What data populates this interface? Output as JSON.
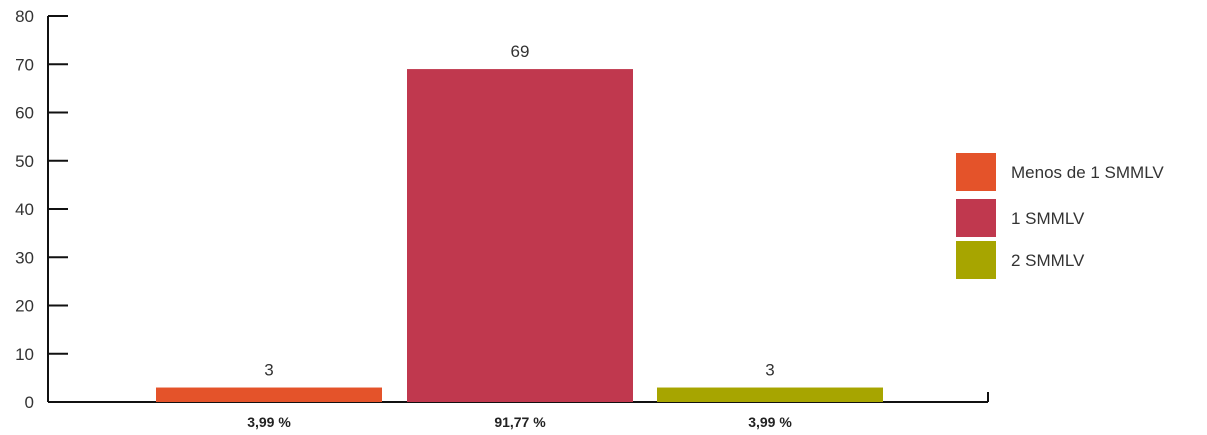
{
  "chart_data": {
    "type": "bar",
    "title": "",
    "xlabel": "",
    "ylabel": "",
    "ylim": [
      0,
      80
    ],
    "yticks": [
      0,
      10,
      20,
      30,
      40,
      50,
      60,
      70,
      80
    ],
    "categories": [
      "Menos de 1 SMMLV",
      "1 SMMLV",
      "2 SMMLV"
    ],
    "values": [
      3,
      69,
      3
    ],
    "percent_labels": [
      "3,99 %",
      "91,77 %",
      "3,99 %"
    ],
    "colors": [
      "#E4532A",
      "#C0384E",
      "#A7A500"
    ],
    "legend": {
      "position": "right",
      "entries": [
        "Menos de 1 SMMLV",
        "1 SMMLV",
        "2 SMMLV"
      ]
    },
    "grid": false
  }
}
